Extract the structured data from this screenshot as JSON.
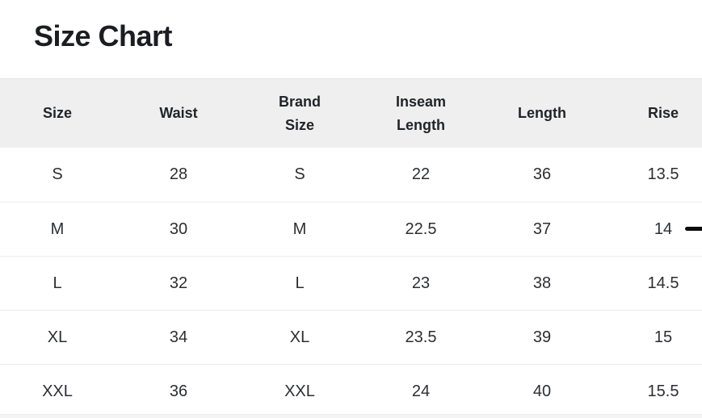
{
  "page": {
    "title": "Size Chart"
  },
  "table": {
    "columns": [
      {
        "key": "size",
        "label": "Size"
      },
      {
        "key": "waist",
        "label": "Waist"
      },
      {
        "key": "brand_size",
        "label": "Brand Size"
      },
      {
        "key": "inseam_length",
        "label": "Inseam Length"
      },
      {
        "key": "length",
        "label": "Length"
      },
      {
        "key": "rise",
        "label": "Rise"
      }
    ],
    "rows": [
      [
        "S",
        "28",
        "S",
        "22",
        "36",
        "13.5"
      ],
      [
        "M",
        "30",
        "M",
        "22.5",
        "37",
        "14"
      ],
      [
        "L",
        "32",
        "L",
        "23",
        "38",
        "14.5"
      ],
      [
        "XL",
        "34",
        "XL",
        "23.5",
        "39",
        "15"
      ],
      [
        "XXL",
        "36",
        "XXL",
        "24",
        "40",
        "15.5"
      ]
    ]
  },
  "colors": {
    "header_bg": "#efefef",
    "row_divider": "#ececec",
    "title_text": "#1b1d21",
    "header_text": "#212428",
    "cell_text": "#2c2e32",
    "dash_mark": "#0c0c0c",
    "bottom_strip": "#f4f4f4"
  }
}
